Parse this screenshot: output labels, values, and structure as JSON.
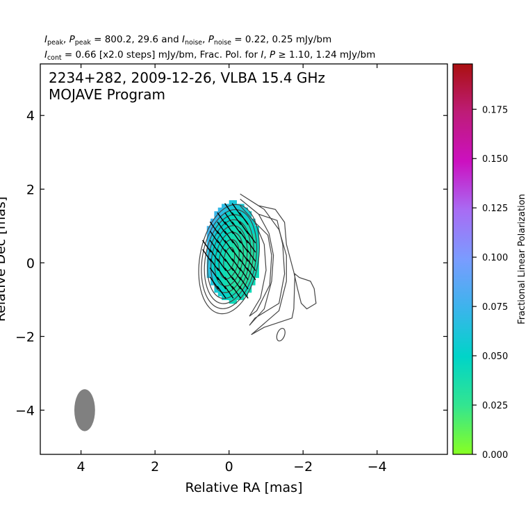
{
  "chart_data": {
    "type": "heatmap",
    "header": {
      "line1": {
        "parts": [
          {
            "t": "I",
            "i": true
          },
          {
            "t": "peak",
            "sub": true
          },
          {
            "t": ", "
          },
          {
            "t": "P",
            "i": true
          },
          {
            "t": "peak",
            "sub": true
          },
          {
            "t": " = 800.2, 29.6 and "
          },
          {
            "t": "I",
            "i": true
          },
          {
            "t": "noise",
            "sub": true
          },
          {
            "t": ", "
          },
          {
            "t": "P",
            "i": true
          },
          {
            "t": "noise",
            "sub": true
          },
          {
            "t": " = 0.22, 0.25 mJy/bm"
          }
        ]
      },
      "line2": {
        "parts": [
          {
            "t": "I",
            "i": true
          },
          {
            "t": "cont",
            "sub": true
          },
          {
            "t": " = 0.66 [x2.0 steps] mJy/bm, Frac. Pol. for "
          },
          {
            "t": "I",
            "i": true
          },
          {
            "t": ", "
          },
          {
            "t": "P",
            "i": true
          },
          {
            "t": " ≥  1.10, 1.24 mJy/bm"
          }
        ]
      }
    },
    "title": "2234+282, 2009-12-26, VLBA 15.4 GHz",
    "subtitle": "MOJAVE Program",
    "xlabel": "Relative RA [mas]",
    "ylabel": "Relative Dec [mas]",
    "xlim": [
      5.1,
      -5.9
    ],
    "ylim": [
      -5.2,
      5.4
    ],
    "xticks": [
      4,
      2,
      0,
      -2,
      -4
    ],
    "yticks": [
      -4,
      -2,
      0,
      2,
      4
    ],
    "colorbar": {
      "label": "Fractional Linear Polarization",
      "range": [
        0,
        0.198
      ],
      "ticks": [
        "0.000",
        "0.025",
        "0.050",
        "0.075",
        "0.100",
        "0.125",
        "0.150",
        "0.175"
      ],
      "tick_values": [
        0,
        0.025,
        0.05,
        0.075,
        0.1,
        0.125,
        0.15,
        0.175
      ],
      "colors": [
        "#88ff22",
        "#33e590",
        "#00d4c8",
        "#3cb4ec",
        "#7a9cff",
        "#a86cf4",
        "#cc10c0",
        "#be1c78",
        "#aa1010"
      ]
    },
    "core": {
      "x": 0,
      "y": 0.1
    },
    "contours": {
      "base_mJy": 0.66,
      "step_factor": 2.0,
      "rings": [
        {
          "a": 0.14,
          "b": 0.32
        },
        {
          "a": 0.26,
          "b": 0.54
        },
        {
          "a": 0.37,
          "b": 0.74
        },
        {
          "a": 0.47,
          "b": 0.92
        },
        {
          "a": 0.56,
          "b": 1.08
        },
        {
          "a": 0.64,
          "b": 1.22
        },
        {
          "a": 0.72,
          "b": 1.36
        },
        {
          "a": 0.79,
          "b": 1.5
        }
      ],
      "extended": [
        [
          [
            -0.3,
            1.87
          ],
          [
            -0.95,
            1.45
          ],
          [
            -1.35,
            0.9
          ],
          [
            -1.55,
            0.2
          ],
          [
            -1.55,
            -0.5
          ],
          [
            -1.35,
            -1.3
          ],
          [
            -0.6,
            -1.95
          ],
          [
            -0.95,
            -1.75
          ],
          [
            -1.7,
            -1.5
          ],
          [
            -1.75,
            -1.25
          ],
          [
            -1.78,
            -0.3
          ],
          [
            -1.9,
            -0.4
          ],
          [
            -2.2,
            -0.5
          ],
          [
            -2.3,
            -0.7
          ],
          [
            -2.35,
            -1.1
          ],
          [
            -2.1,
            -1.25
          ],
          [
            -1.95,
            -1.1
          ],
          [
            -1.85,
            -0.7
          ],
          [
            -1.75,
            -0.25
          ],
          [
            -1.55,
            0.5
          ],
          [
            -1.5,
            1.1
          ],
          [
            -1.25,
            1.45
          ],
          [
            -0.8,
            1.55
          ],
          [
            -0.3,
            1.87
          ]
        ],
        [
          [
            -0.3,
            1.73
          ],
          [
            -0.8,
            1.32
          ],
          [
            -1.08,
            0.8
          ],
          [
            -1.2,
            0.2
          ],
          [
            -1.15,
            -0.5
          ],
          [
            -0.95,
            -1.25
          ],
          [
            -0.55,
            -1.7
          ],
          [
            -0.7,
            -1.5
          ],
          [
            -1.35,
            -1.1
          ],
          [
            -1.5,
            -0.3
          ],
          [
            -1.45,
            0.5
          ],
          [
            -1.3,
            1.15
          ],
          [
            -0.8,
            1.32
          ],
          [
            -0.3,
            1.73
          ]
        ],
        [
          [
            -0.3,
            1.55
          ],
          [
            -0.7,
            1.1
          ],
          [
            -0.95,
            0.5
          ],
          [
            -1.0,
            -0.2
          ],
          [
            -0.85,
            -0.95
          ],
          [
            -0.55,
            -1.45
          ],
          [
            -0.75,
            -1.3
          ],
          [
            -1.1,
            -0.6
          ],
          [
            -1.15,
            0.2
          ],
          [
            -1.05,
            0.75
          ],
          [
            -0.7,
            1.1
          ],
          [
            -0.3,
            1.55
          ]
        ]
      ],
      "islands": [
        {
          "x": -1.4,
          "y": -1.95,
          "a": 0.1,
          "b": 0.18
        }
      ]
    },
    "polarization_grid": {
      "dx": 0.1,
      "dy": 0.1
    },
    "evpa_vectors": {
      "count_approx": 80,
      "angle_deg": 35
    },
    "beam": {
      "x": 3.9,
      "y": -4.0,
      "major": 1.14,
      "minor": 0.56,
      "pa_deg": 0
    }
  }
}
